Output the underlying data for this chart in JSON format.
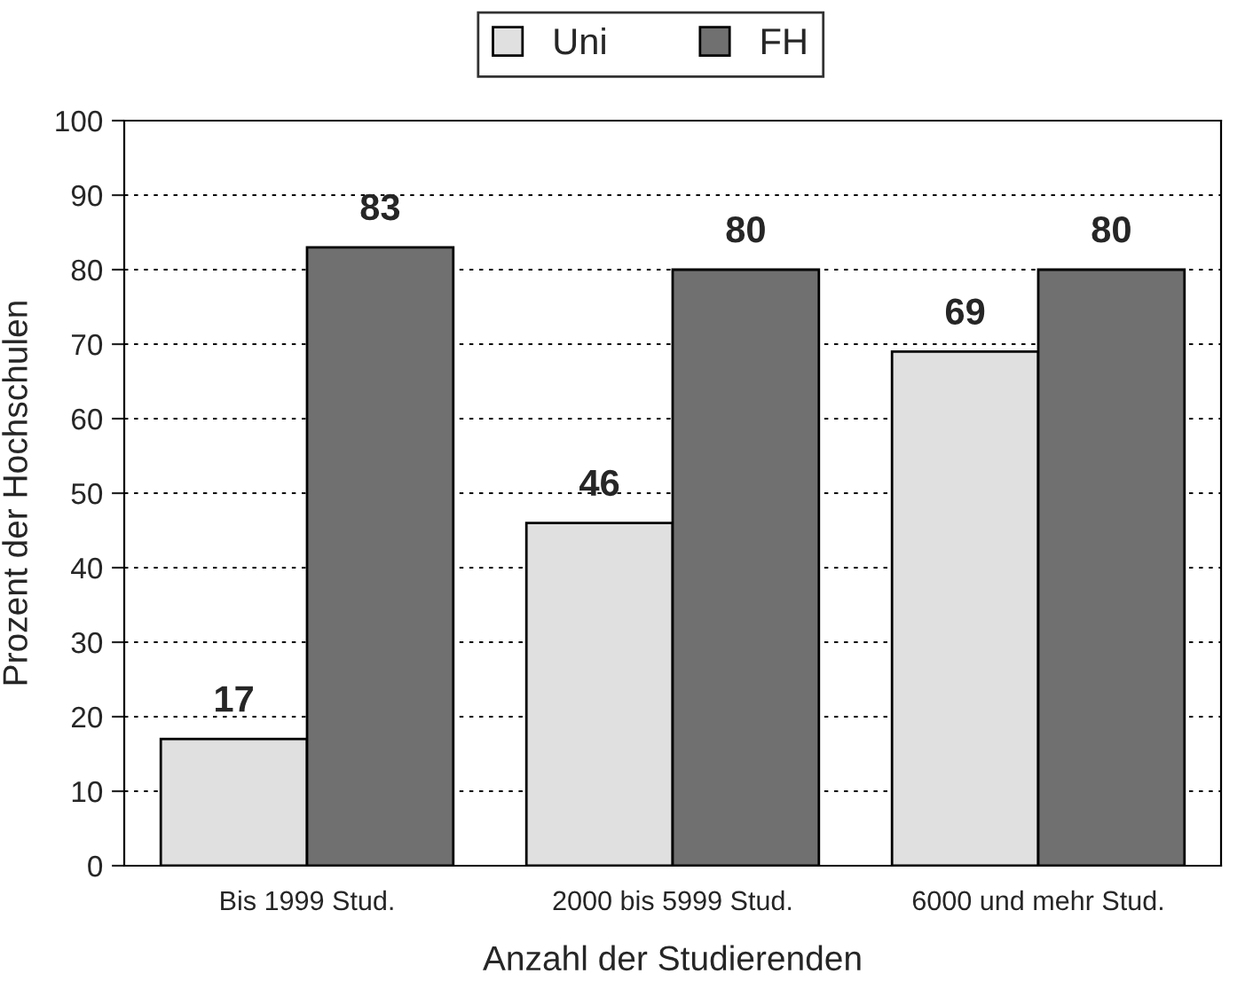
{
  "chart_data": {
    "type": "bar",
    "xlabel": "Anzahl der Studierenden",
    "ylabel": "Prozent der Hochschulen",
    "categories": [
      "Bis 1999 Stud.",
      "2000 bis 5999 Stud.",
      "6000 und mehr Stud."
    ],
    "series": [
      {
        "name": "Uni",
        "color": "#e0e0e0",
        "values": [
          17,
          46,
          69
        ]
      },
      {
        "name": "FH",
        "color": "#707070",
        "values": [
          83,
          80,
          80
        ]
      }
    ],
    "ylim": [
      0,
      100
    ],
    "yticks": [
      0,
      10,
      20,
      30,
      40,
      50,
      60,
      70,
      80,
      90,
      100
    ],
    "grid": "y",
    "legend": "top",
    "data_labels": true
  }
}
